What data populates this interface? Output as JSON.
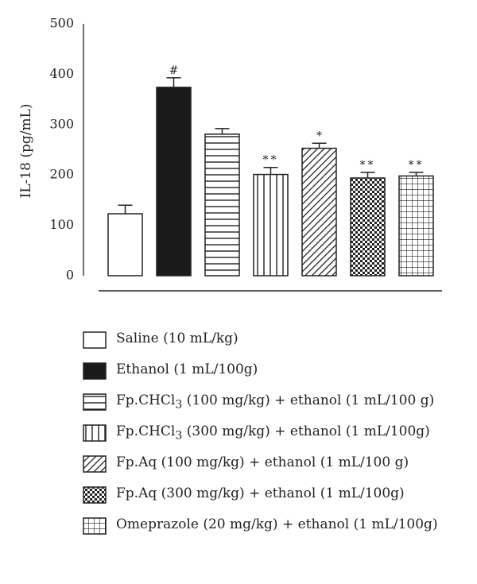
{
  "chart_data": {
    "type": "bar",
    "title": "",
    "xlabel": "",
    "ylabel": "IL-18 (pg/mL)",
    "ylim": [
      0,
      500
    ],
    "yticks": [
      "0",
      "100",
      "200",
      "300",
      "400",
      "500"
    ],
    "grid": false,
    "legend_position": "bottom",
    "categories": [
      "Saline (10 mL/kg)",
      "Ethanol (1 mL/100g)",
      "Fp.CHCl3 (100 mg/kg) + ethanol (1 mL/100 g)",
      "Fp.CHCl3 (300 mg/kg) + ethanol (1 mL/100g)",
      "Fp.Aq (100 mg/kg) + ethanol (1 mL/100 g)",
      "Fp.Aq (300 mg/kg) + ethanol (1 mL/100g)",
      "Omeprazole (20 mg/kg) + ethanol (1 mL/100g)"
    ],
    "values": [
      123,
      374,
      281,
      201,
      253,
      194,
      198
    ],
    "errors": [
      17,
      19,
      11,
      14,
      10,
      11,
      7
    ],
    "annotations": [
      "",
      "#",
      "",
      "**",
      "*",
      "**",
      "**"
    ],
    "patterns": [
      "empty",
      "solid",
      "horizontal",
      "vertical",
      "diagonal",
      "checker",
      "grid"
    ]
  },
  "legend": {
    "items": [
      {
        "pattern": "empty",
        "pre": "Saline (10 mL/kg)",
        "sub": "",
        "post": ""
      },
      {
        "pattern": "solid",
        "pre": "Ethanol (1 mL/100g)",
        "sub": "",
        "post": ""
      },
      {
        "pattern": "horizontal",
        "pre": "Fp.CHCl",
        "sub": "3",
        "post": " (100 mg/kg) + ethanol (1 mL/100 g)"
      },
      {
        "pattern": "vertical",
        "pre": "Fp.CHCl",
        "sub": "3",
        "post": " (300 mg/kg) + ethanol (1 mL/100g)"
      },
      {
        "pattern": "diagonal",
        "pre": "Fp.Aq (100 mg/kg) + ethanol (1 mL/100 g)",
        "sub": "",
        "post": ""
      },
      {
        "pattern": "checker",
        "pre": "Fp.Aq (300 mg/kg) + ethanol (1 mL/100g)",
        "sub": "",
        "post": ""
      },
      {
        "pattern": "grid",
        "pre": "Omeprazole (20 mg/kg) + ethanol (1 mL/100g)",
        "sub": "",
        "post": ""
      }
    ]
  }
}
